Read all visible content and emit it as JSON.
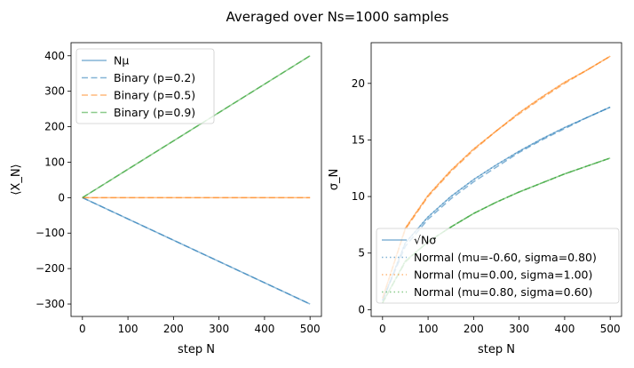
{
  "figure": {
    "title": "Averaged over Ns=1000 samples"
  },
  "colors": {
    "blue": "#1f77b4",
    "orange": "#ff7f0e",
    "green": "#2ca02c"
  },
  "chart_data": [
    {
      "type": "line",
      "panel": "left",
      "xlabel": "step N",
      "ylabel": "⟨X_N⟩",
      "xlim": [
        -25,
        525
      ],
      "ylim": [
        -335,
        437
      ],
      "xticks": [
        0,
        100,
        200,
        300,
        400,
        500
      ],
      "yticks": [
        -300,
        -200,
        -100,
        0,
        100,
        200,
        300,
        400
      ],
      "grid": false,
      "legend_position": "upper-left",
      "legend": [
        {
          "label": "Nμ",
          "style": "solid",
          "color": "#1f77b4"
        },
        {
          "label": "Binary (p=0.2)",
          "style": "dashed",
          "color": "#1f77b4"
        },
        {
          "label": "Binary (p=0.5)",
          "style": "dashed",
          "color": "#ff7f0e"
        },
        {
          "label": "Binary (p=0.9)",
          "style": "dashed",
          "color": "#2ca02c"
        }
      ],
      "series": [
        {
          "name": "Binary (p=0.2)",
          "style": "dashed",
          "color": "#1f77b4",
          "x": [
            0,
            500
          ],
          "y": [
            0,
            -300
          ]
        },
        {
          "name": "Binary (p=0.5)",
          "style": "dashed",
          "color": "#ff7f0e",
          "x": [
            0,
            500
          ],
          "y": [
            0,
            0
          ]
        },
        {
          "name": "Binary (p=0.9)",
          "style": "dashed",
          "color": "#2ca02c",
          "x": [
            0,
            500
          ],
          "y": [
            0,
            400
          ]
        }
      ]
    },
    {
      "type": "line",
      "panel": "right",
      "xlabel": "step N",
      "ylabel": "σ_N",
      "xlim": [
        -25,
        525
      ],
      "ylim": [
        -0.6,
        23.6
      ],
      "xticks": [
        0,
        100,
        200,
        300,
        400,
        500
      ],
      "yticks": [
        0,
        5,
        10,
        15,
        20
      ],
      "grid": false,
      "legend_position": "lower-left",
      "legend": [
        {
          "label": "√Nσ",
          "style": "solid",
          "color": "#1f77b4"
        },
        {
          "label": "Normal (mu=-0.60, sigma=0.80)",
          "style": "dotted",
          "color": "#1f77b4"
        },
        {
          "label": "Normal (mu=0.00, sigma=1.00)",
          "style": "dotted",
          "color": "#ff7f0e"
        },
        {
          "label": "Normal (mu=0.80, sigma=0.60)",
          "style": "dotted",
          "color": "#2ca02c"
        }
      ],
      "series": [
        {
          "name": "Normal (mu=-0.60, sigma=0.80)",
          "style": "dotted",
          "color": "#1f77b4",
          "x": [
            0,
            50,
            100,
            150,
            200,
            250,
            300,
            350,
            400,
            450,
            500
          ],
          "y": [
            0.8,
            5.9,
            8.2,
            10.0,
            11.5,
            12.8,
            14.0,
            15.1,
            16.1,
            17.0,
            17.9
          ]
        },
        {
          "name": "Normal (mu=0.00, sigma=1.00)",
          "style": "dotted",
          "color": "#ff7f0e",
          "x": [
            0,
            50,
            100,
            150,
            200,
            250,
            300,
            350,
            400,
            450,
            500
          ],
          "y": [
            1.0,
            7.2,
            10.1,
            12.3,
            14.2,
            15.8,
            17.4,
            18.8,
            20.1,
            21.2,
            22.4
          ]
        },
        {
          "name": "Normal (mu=0.80, sigma=0.60)",
          "style": "dotted",
          "color": "#2ca02c",
          "x": [
            0,
            50,
            100,
            150,
            200,
            250,
            300,
            350,
            400,
            450,
            500
          ],
          "y": [
            0.6,
            4.3,
            6.0,
            7.3,
            8.5,
            9.5,
            10.4,
            11.2,
            12.0,
            12.7,
            13.4
          ]
        },
        {
          "name": "Binary (p=0.2)",
          "style": "dashed",
          "color": "#1f77b4",
          "x": [
            0,
            50,
            100,
            150,
            200,
            250,
            300,
            350,
            400,
            450,
            500
          ],
          "y": [
            0.8,
            5.6,
            8.0,
            9.8,
            11.3,
            12.6,
            13.9,
            15.0,
            16.0,
            17.0,
            17.9
          ]
        },
        {
          "name": "Binary (p=0.5)",
          "style": "dashed",
          "color": "#ff7f0e",
          "x": [
            0,
            50,
            100,
            150,
            200,
            250,
            300,
            350,
            400,
            450,
            500
          ],
          "y": [
            1.0,
            7.1,
            10.0,
            12.2,
            14.1,
            15.8,
            17.3,
            18.7,
            20.0,
            21.2,
            22.4
          ]
        },
        {
          "name": "Binary (p=0.9)",
          "style": "dashed",
          "color": "#2ca02c",
          "x": [
            0,
            50,
            100,
            150,
            200,
            250,
            300,
            350,
            400,
            450,
            500
          ],
          "y": [
            0.6,
            4.2,
            6.0,
            7.3,
            8.5,
            9.5,
            10.4,
            11.2,
            12.0,
            12.7,
            13.4
          ]
        }
      ]
    }
  ]
}
